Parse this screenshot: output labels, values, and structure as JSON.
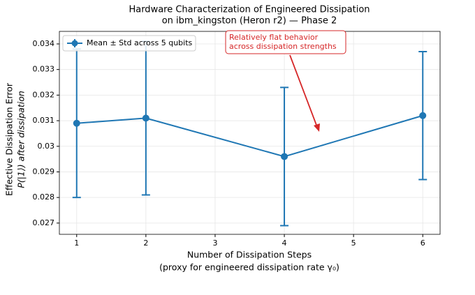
{
  "chart_data": {
    "type": "line",
    "title": [
      "Hardware Characterization of Engineered Dissipation",
      "on ibm_kingston (Heron r2) — Phase 2"
    ],
    "x_label": [
      "Number of Dissipation Steps",
      "(proxy for engineered dissipation rate γ₀)"
    ],
    "y_label": [
      "Effective Dissipation Error",
      "P(|1⟩) after dissipation"
    ],
    "x": [
      1,
      2,
      4,
      6
    ],
    "series": [
      {
        "name": "Mean ± Std across 5 qubits",
        "color": "#1f77b4",
        "values": [
          0.0309,
          0.0311,
          0.0296,
          0.0312
        ],
        "errors": [
          0.0029,
          0.003,
          0.0027,
          0.0025
        ]
      }
    ],
    "xlim": [
      0.75,
      6.25
    ],
    "xticks": [
      1,
      2,
      3,
      4,
      5,
      6
    ],
    "ylim": [
      0.02656,
      0.03449
    ],
    "yticks": [
      0.027,
      0.028,
      0.029,
      0.03,
      0.031,
      0.032,
      0.033,
      0.034
    ],
    "grid": true,
    "legend": "upper left",
    "annotation": [
      "Relatively flat behavior",
      "across dissipation strengths"
    ],
    "annotation_color": "#d62728"
  }
}
